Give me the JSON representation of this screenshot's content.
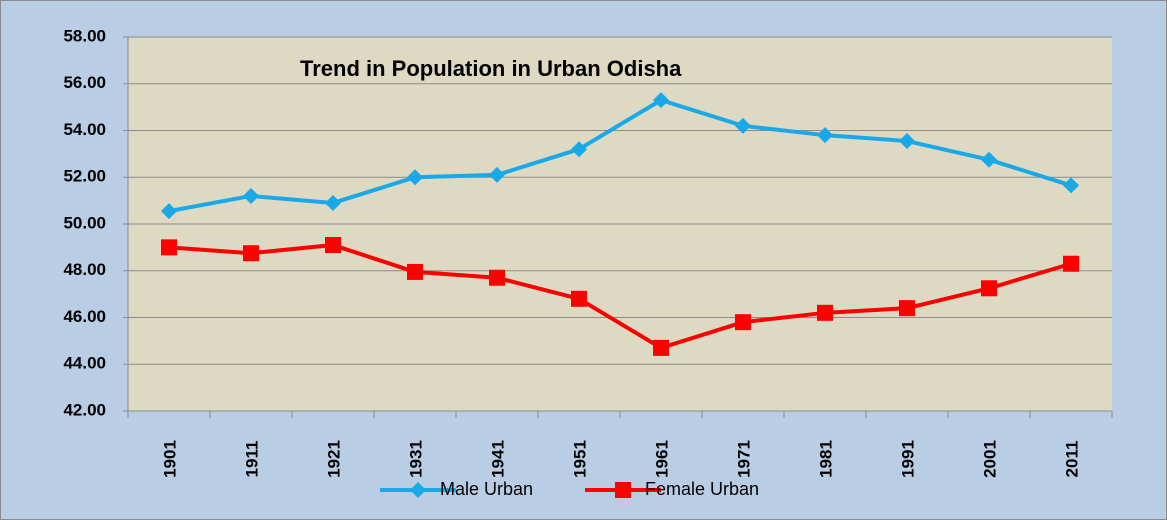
{
  "chart_data": {
    "type": "line",
    "title": "Trend in Population in Urban Odisha",
    "categories": [
      "1901",
      "1911",
      "1921",
      "1931",
      "1941",
      "1951",
      "1961",
      "1971",
      "1981",
      "1991",
      "2001",
      "2011"
    ],
    "series": [
      {
        "name": "Male Urban",
        "color": "#1aa9e8",
        "marker": "diamond",
        "values": [
          50.55,
          51.2,
          50.9,
          52.0,
          52.1,
          53.2,
          55.3,
          54.2,
          53.8,
          53.55,
          52.75,
          51.65
        ]
      },
      {
        "name": "Female Urban",
        "color": "#ff0000",
        "marker": "square",
        "values": [
          49.0,
          48.75,
          49.1,
          47.95,
          47.7,
          46.8,
          44.7,
          45.8,
          46.2,
          46.4,
          47.25,
          48.3
        ]
      }
    ],
    "ylim": [
      42,
      58
    ],
    "yticks": [
      {
        "value": 42,
        "label": "42.00"
      },
      {
        "value": 44,
        "label": "44.00"
      },
      {
        "value": 46,
        "label": "46.00"
      },
      {
        "value": 48,
        "label": "48.00"
      },
      {
        "value": 50,
        "label": "50.00"
      },
      {
        "value": 52,
        "label": "52.00"
      },
      {
        "value": 54,
        "label": "54.00"
      },
      {
        "value": 56,
        "label": "56.00"
      },
      {
        "value": 58,
        "label": "58.00"
      }
    ],
    "grid": true
  }
}
